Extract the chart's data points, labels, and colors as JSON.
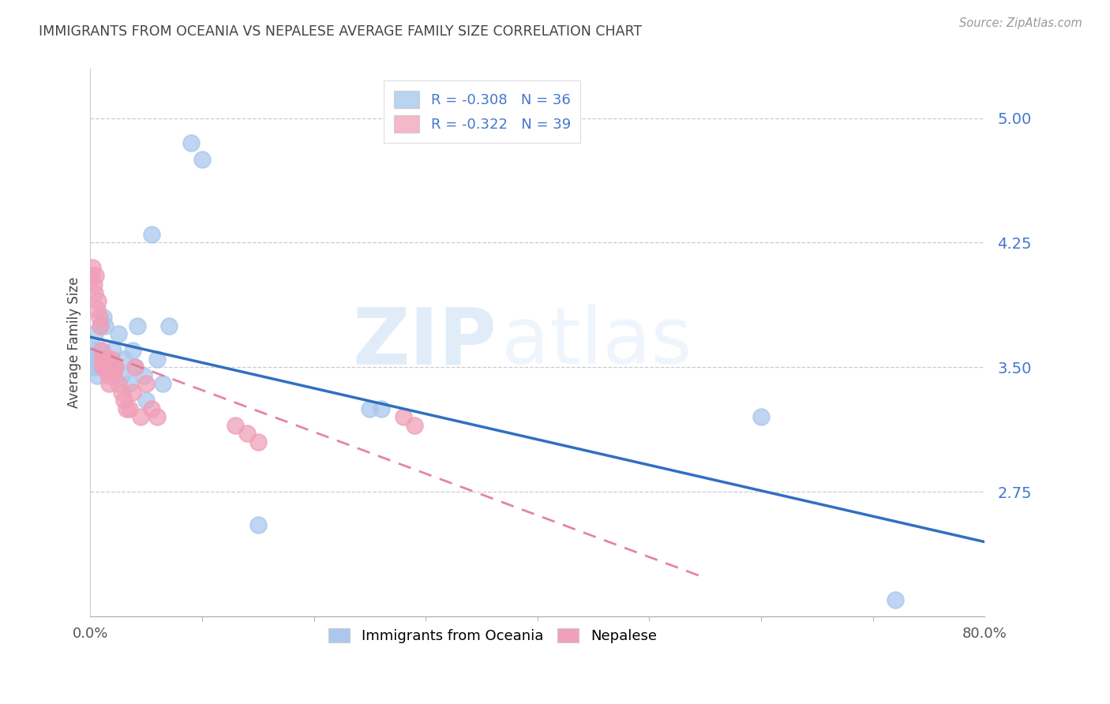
{
  "title": "IMMIGRANTS FROM OCEANIA VS NEPALESE AVERAGE FAMILY SIZE CORRELATION CHART",
  "source": "Source: ZipAtlas.com",
  "ylabel": "Average Family Size",
  "xlim": [
    0,
    0.8
  ],
  "ylim": [
    2.0,
    5.3
  ],
  "yticks": [
    2.75,
    3.5,
    4.25,
    5.0
  ],
  "ytick_labels": [
    "2.75",
    "3.50",
    "4.25",
    "5.00"
  ],
  "xtick_labels_sparse": [
    "0.0%",
    "80.0%"
  ],
  "xtick_positions_sparse": [
    0.0,
    0.8
  ],
  "watermark_zip": "ZIP",
  "watermark_atlas": "atlas",
  "legend_entries": [
    {
      "r": "R = -0.308",
      "n": "N = 36",
      "color": "#b8d4f0"
    },
    {
      "r": "R = -0.322",
      "n": "N = 39",
      "color": "#f5b8c8"
    }
  ],
  "series1_color": "#aac8ee",
  "series2_color": "#f0a0b8",
  "trendline1_color": "#3070c0",
  "trendline2_color": "#e07090",
  "oceania_x": [
    0.001,
    0.002,
    0.003,
    0.004,
    0.005,
    0.006,
    0.007,
    0.008,
    0.009,
    0.01,
    0.012,
    0.013,
    0.015,
    0.018,
    0.02,
    0.022,
    0.025,
    0.028,
    0.03,
    0.035,
    0.038,
    0.04,
    0.042,
    0.048,
    0.05,
    0.055,
    0.06,
    0.065,
    0.07,
    0.09,
    0.1,
    0.25,
    0.26,
    0.72,
    0.6,
    0.15
  ],
  "oceania_y": [
    3.55,
    3.5,
    3.6,
    3.7,
    3.5,
    3.45,
    3.55,
    3.6,
    3.75,
    3.5,
    3.8,
    3.75,
    3.55,
    3.5,
    3.6,
    3.5,
    3.7,
    3.45,
    3.55,
    3.4,
    3.6,
    3.5,
    3.75,
    3.45,
    3.3,
    4.3,
    3.55,
    3.4,
    3.75,
    4.85,
    4.75,
    3.25,
    3.25,
    2.1,
    3.2,
    2.55
  ],
  "nepalese_x": [
    0.001,
    0.002,
    0.003,
    0.004,
    0.005,
    0.006,
    0.007,
    0.008,
    0.009,
    0.01,
    0.01,
    0.011,
    0.012,
    0.013,
    0.014,
    0.015,
    0.016,
    0.017,
    0.018,
    0.019,
    0.02,
    0.021,
    0.022,
    0.025,
    0.028,
    0.03,
    0.032,
    0.035,
    0.038,
    0.04,
    0.045,
    0.05,
    0.055,
    0.06,
    0.13,
    0.14,
    0.15,
    0.28,
    0.29
  ],
  "nepalese_y": [
    4.05,
    4.1,
    4.0,
    3.95,
    4.05,
    3.85,
    3.9,
    3.8,
    3.75,
    3.6,
    3.55,
    3.5,
    3.55,
    3.5,
    3.55,
    3.5,
    3.45,
    3.4,
    3.5,
    3.55,
    3.5,
    3.45,
    3.5,
    3.4,
    3.35,
    3.3,
    3.25,
    3.25,
    3.35,
    3.5,
    3.2,
    3.4,
    3.25,
    3.2,
    3.15,
    3.1,
    3.05,
    3.2,
    3.15
  ],
  "background_color": "#ffffff",
  "grid_color": "#cccccc",
  "title_color": "#444444",
  "ytick_color": "#4477cc",
  "xtick_color": "#555555"
}
